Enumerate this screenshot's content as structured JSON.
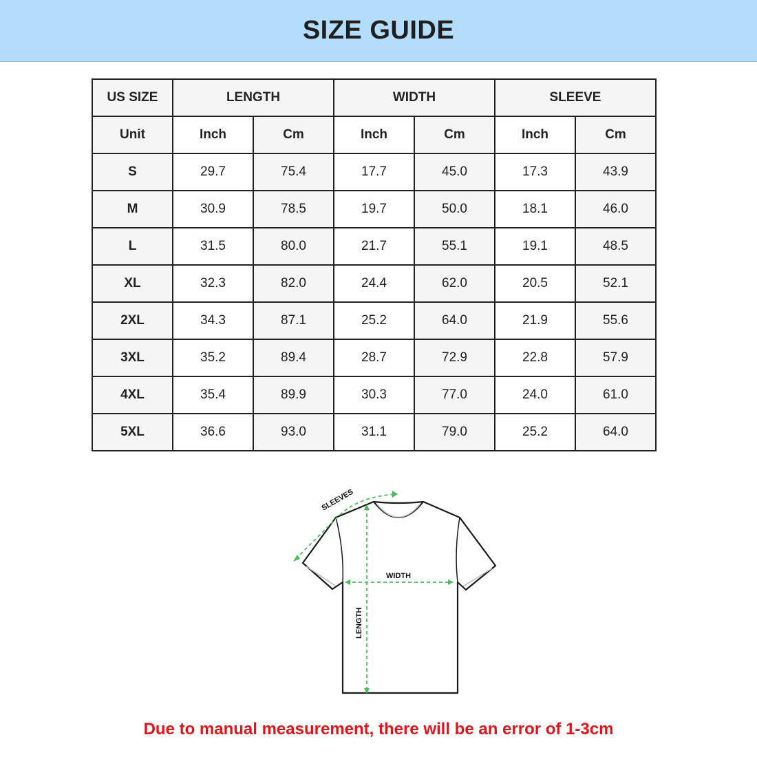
{
  "header": {
    "title": "SIZE GUIDE",
    "background": "#b3ddfa"
  },
  "table": {
    "group_headers": [
      "US SIZE",
      "LENGTH",
      "WIDTH",
      "SLEEVE"
    ],
    "unit_row": [
      "Unit",
      "Inch",
      "Cm",
      "Inch",
      "Cm",
      "Inch",
      "Cm"
    ],
    "rows": [
      [
        "S",
        "29.7",
        "75.4",
        "17.7",
        "45.0",
        "17.3",
        "43.9"
      ],
      [
        "M",
        "30.9",
        "78.5",
        "19.7",
        "50.0",
        "18.1",
        "46.0"
      ],
      [
        "L",
        "31.5",
        "80.0",
        "21.7",
        "55.1",
        "19.1",
        "48.5"
      ],
      [
        "XL",
        "32.3",
        "82.0",
        "24.4",
        "62.0",
        "20.5",
        "52.1"
      ],
      [
        "2XL",
        "34.3",
        "87.1",
        "25.2",
        "64.0",
        "21.9",
        "55.6"
      ],
      [
        "3XL",
        "35.2",
        "89.4",
        "28.7",
        "72.9",
        "22.8",
        "57.9"
      ],
      [
        "4XL",
        "35.4",
        "89.9",
        "30.3",
        "77.0",
        "24.0",
        "61.0"
      ],
      [
        "5XL",
        "36.6",
        "93.0",
        "31.1",
        "79.0",
        "25.2",
        "64.0"
      ]
    ]
  },
  "diagram": {
    "sleeves_label": "SLEEVES",
    "width_label": "WIDTH",
    "length_label": "LENGTH",
    "measure_color": "#4cbb5a"
  },
  "footer": {
    "note": "Due to manual measurement, there will be an error of 1-3cm",
    "color": "#e0141b"
  }
}
